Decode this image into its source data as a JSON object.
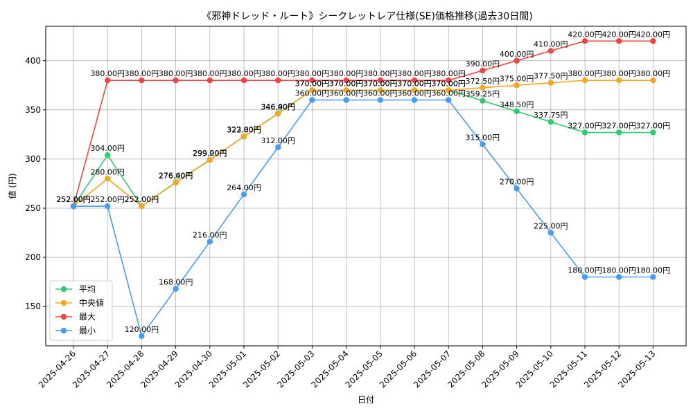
{
  "chart_data": {
    "type": "line",
    "title": "《邪神ドレッド・ルート》シークレットレア仕様(SE)価格推移(過去30日間)",
    "xlabel": "日付",
    "ylabel": "値 (円)",
    "x": [
      "2025-04-26",
      "2025-04-27",
      "2025-04-28",
      "2025-04-29",
      "2025-04-30",
      "2025-05-01",
      "2025-05-02",
      "2025-05-03",
      "2025-05-04",
      "2025-05-05",
      "2025-05-06",
      "2025-05-07",
      "2025-05-08",
      "2025-05-09",
      "2025-05-10",
      "2025-05-11",
      "2025-05-12",
      "2025-05-13"
    ],
    "ylim": [
      110,
      435
    ],
    "yticks": [
      150,
      200,
      250,
      300,
      350,
      400
    ],
    "grid": true,
    "legend_position": "lower-left",
    "label_suffix": "円",
    "series": [
      {
        "name": "平均",
        "color": "#2ecc71",
        "values": [
          252.0,
          304.0,
          252.0,
          276.4,
          299.2,
          322.8,
          346.4,
          370.0,
          370.0,
          370.0,
          370.0,
          370.0,
          359.25,
          348.5,
          337.75,
          327.0,
          327.0,
          327.0
        ]
      },
      {
        "name": "中央値",
        "color": "#f5a623",
        "values": [
          252.0,
          280.0,
          252.0,
          276.0,
          299.0,
          323.0,
          346.0,
          370.0,
          370.0,
          370.0,
          370.0,
          370.0,
          372.5,
          375.0,
          377.5,
          380.0,
          380.0,
          380.0
        ]
      },
      {
        "name": "最大",
        "color": "#ef4444",
        "values": [
          252.0,
          380.0,
          380.0,
          380.0,
          380.0,
          380.0,
          380.0,
          380.0,
          380.0,
          380.0,
          380.0,
          380.0,
          390.0,
          400.0,
          410.0,
          420.0,
          420.0,
          420.0
        ]
      },
      {
        "name": "最小",
        "color": "#4a9bf5",
        "values": [
          252.0,
          252.0,
          120.0,
          168.0,
          216.0,
          264.0,
          312.0,
          360.0,
          360.0,
          360.0,
          360.0,
          360.0,
          315.0,
          270.0,
          225.0,
          180.0,
          180.0,
          180.0
        ]
      }
    ]
  }
}
